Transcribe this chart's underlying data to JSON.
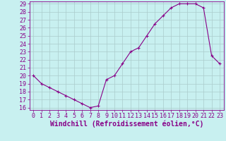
{
  "x": [
    0,
    1,
    2,
    3,
    4,
    5,
    6,
    7,
    8,
    9,
    10,
    11,
    12,
    13,
    14,
    15,
    16,
    17,
    18,
    19,
    20,
    21,
    22,
    23
  ],
  "y": [
    20,
    19,
    18.5,
    18,
    17.5,
    17,
    16.5,
    16,
    16.2,
    19.5,
    20,
    21.5,
    23,
    23.5,
    25,
    26.5,
    27.5,
    28.5,
    29,
    29,
    29,
    28.5,
    22.5,
    21.5
  ],
  "ylim": [
    16,
    29
  ],
  "xlim": [
    -0.5,
    23.5
  ],
  "yticks": [
    16,
    17,
    18,
    19,
    20,
    21,
    22,
    23,
    24,
    25,
    26,
    27,
    28,
    29
  ],
  "xticks": [
    0,
    1,
    2,
    3,
    4,
    5,
    6,
    7,
    8,
    9,
    10,
    11,
    12,
    13,
    14,
    15,
    16,
    17,
    18,
    19,
    20,
    21,
    22,
    23
  ],
  "xlabel": "Windchill (Refroidissement éolien,°C)",
  "line_color": "#880088",
  "marker": "+",
  "bg_color": "#c8f0f0",
  "grid_color": "#aacccc",
  "axis_color": "#880088",
  "tick_color": "#880088",
  "label_color": "#880088",
  "tick_fontsize": 6,
  "xlabel_fontsize": 7
}
